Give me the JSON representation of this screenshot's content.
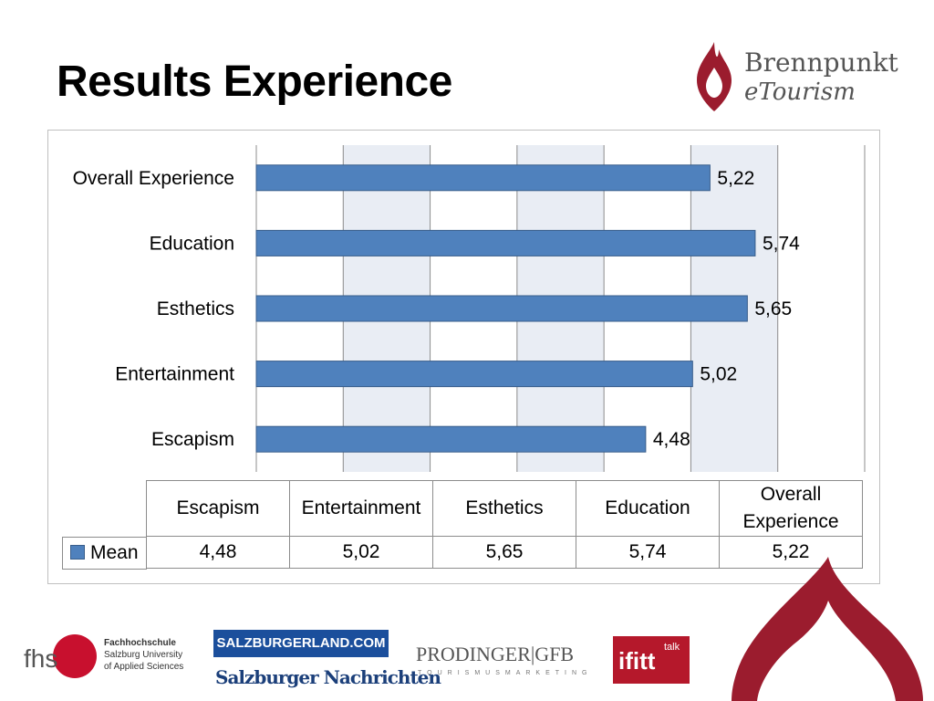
{
  "slide": {
    "title": "Results Experience",
    "brand_name": "Brennpunkt",
    "brand_sub": "eTourism",
    "accent_color": "#9b1c2e"
  },
  "chart_data": {
    "type": "bar",
    "orientation": "horizontal",
    "categories": [
      "Overall Experience",
      "Education",
      "Esthetics",
      "Entertainment",
      "Escapism"
    ],
    "series": [
      {
        "name": "Mean",
        "values": [
          5.22,
          5.74,
          5.65,
          5.02,
          4.48
        ],
        "labels": [
          "5,22",
          "5,74",
          "5,65",
          "5,02",
          "4,48"
        ],
        "color": "#4f81bd"
      }
    ],
    "xlim": [
      0,
      7
    ],
    "grid": true,
    "data_table": {
      "columns": [
        "Escapism",
        "Entertainment",
        "Esthetics",
        "Education",
        "Overall Experience"
      ],
      "rows": [
        {
          "series": "Mean",
          "values": [
            "4,48",
            "5,02",
            "5,65",
            "5,74",
            "5,22"
          ]
        }
      ]
    }
  },
  "footer": {
    "fhs": "fhs",
    "fhs_line1": "Fachhochschule",
    "fhs_line2": "Salzburg University",
    "fhs_line3": "of Applied Sciences",
    "salzburgerland": "SALZBURGERLAND.COM",
    "sn": "Salzburger Nachrichten",
    "prodinger": "PRODINGER|GFB",
    "prodinger_sub": "TOURISMUSMARKETING",
    "ifitt": "ifitt",
    "ifitt_talk": "talk"
  }
}
